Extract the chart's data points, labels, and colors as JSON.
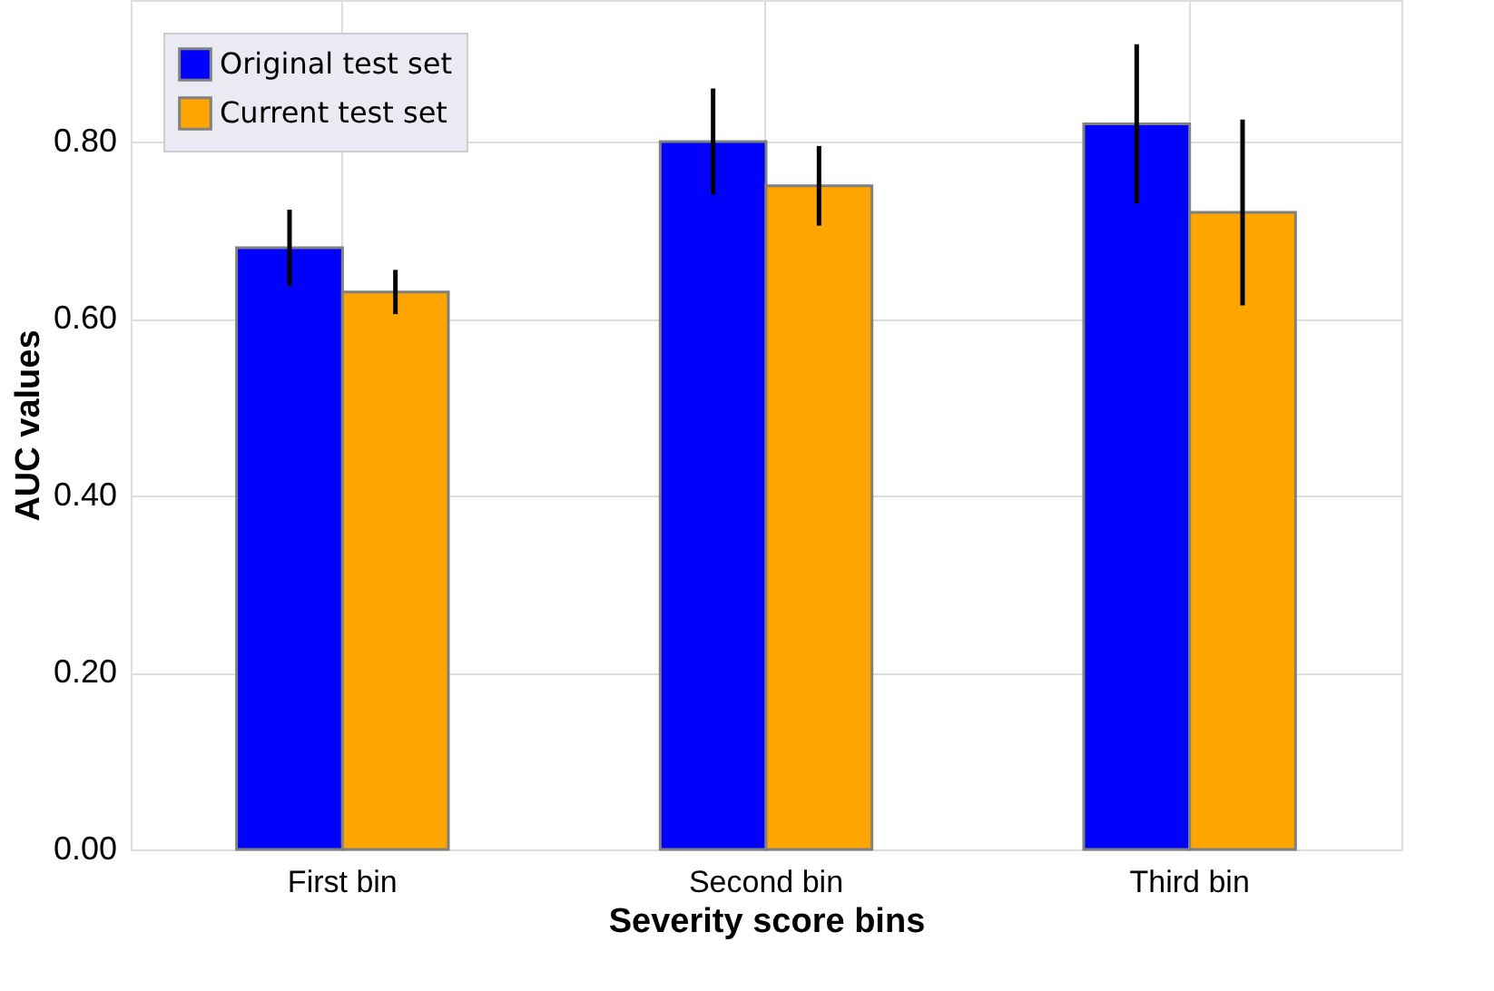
{
  "chart_data": {
    "type": "bar",
    "xlabel": "Severity score bins",
    "ylabel": "AUC values",
    "categories": [
      "First bin",
      "Second bin",
      "Third bin"
    ],
    "series": [
      {
        "name": "Original test set",
        "color": "#0000ff",
        "values": [
          0.68,
          0.8,
          0.82
        ],
        "errors": [
          0.043,
          0.06,
          0.09
        ]
      },
      {
        "name": "Current test set",
        "color": "#ffa500",
        "values": [
          0.63,
          0.75,
          0.72
        ],
        "errors": [
          0.025,
          0.045,
          0.105
        ]
      }
    ],
    "ylim": [
      0,
      0.96
    ],
    "yticks": [
      {
        "value": 0,
        "label": "0.00"
      },
      {
        "value": 0.2,
        "label": "0.20"
      },
      {
        "value": 0.4,
        "label": "0.40"
      },
      {
        "value": 0.6,
        "label": "0.60"
      },
      {
        "value": 0.8,
        "label": "0.80"
      }
    ],
    "grid": true,
    "legend": "top left"
  }
}
